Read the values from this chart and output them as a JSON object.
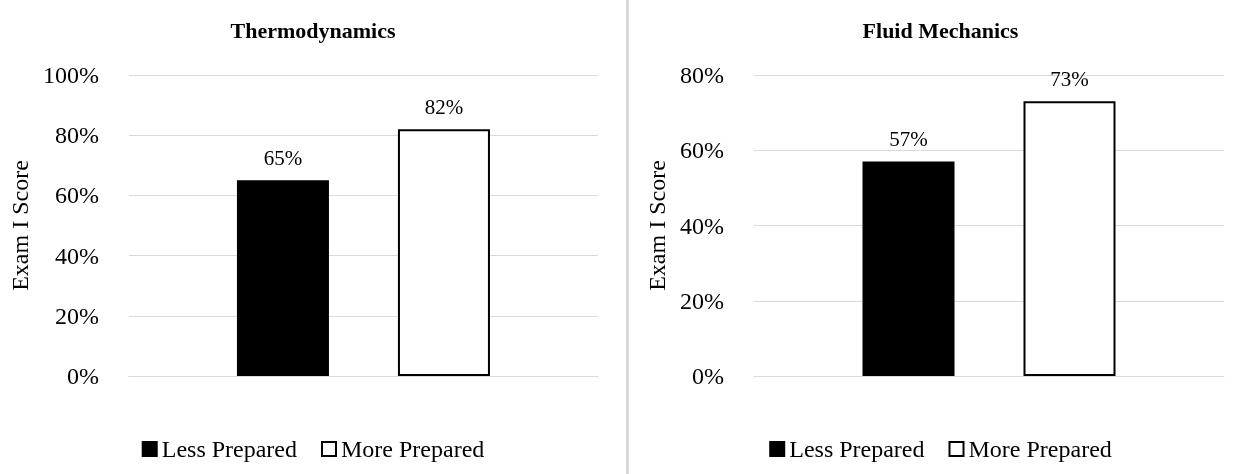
{
  "chart_data": [
    {
      "type": "bar",
      "title": "Thermodynamics",
      "ylabel": "Exam I Score",
      "categories": [
        null
      ],
      "series": [
        {
          "name": "Less Prepared",
          "color": "#000000",
          "values": [
            65
          ],
          "value_labels": [
            "65%"
          ]
        },
        {
          "name": "More Prepared",
          "color": "#ffffff",
          "values": [
            82
          ],
          "value_labels": [
            "82%"
          ]
        }
      ],
      "ylim": [
        0,
        100
      ],
      "yticks": [
        {
          "value": 0,
          "label": "0%"
        },
        {
          "value": 20,
          "label": "20%"
        },
        {
          "value": 40,
          "label": "40%"
        },
        {
          "value": 60,
          "label": "60%"
        },
        {
          "value": 80,
          "label": "80%"
        },
        {
          "value": 100,
          "label": "100%"
        }
      ],
      "grid": "y",
      "legend": "bottom"
    },
    {
      "type": "bar",
      "title": "Fluid Mechanics",
      "ylabel": "Exam I Score",
      "categories": [
        null
      ],
      "series": [
        {
          "name": "Less Prepared",
          "color": "#000000",
          "values": [
            57
          ],
          "value_labels": [
            "57%"
          ]
        },
        {
          "name": "More Prepared",
          "color": "#ffffff",
          "values": [
            73
          ],
          "value_labels": [
            "73%"
          ]
        }
      ],
      "ylim": [
        0,
        80
      ],
      "yticks": [
        {
          "value": 0,
          "label": "0%"
        },
        {
          "value": 20,
          "label": "20%"
        },
        {
          "value": 40,
          "label": "40%"
        },
        {
          "value": 60,
          "label": "60%"
        },
        {
          "value": 80,
          "label": "80%"
        }
      ],
      "grid": "y",
      "legend": "bottom"
    }
  ]
}
